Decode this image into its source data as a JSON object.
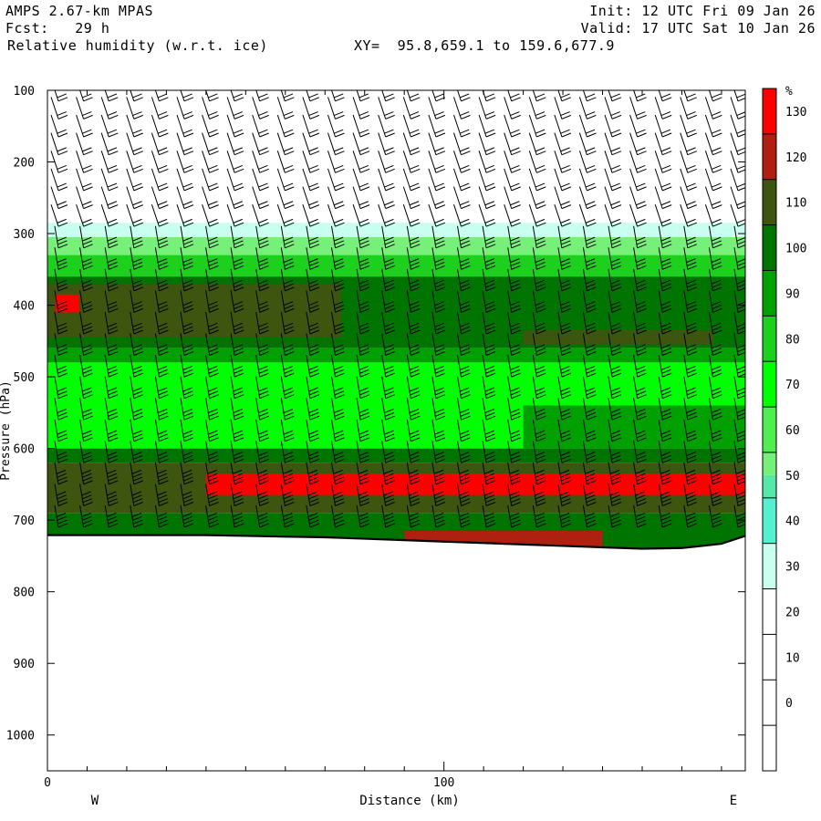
{
  "header": {
    "model": "AMPS 2.67-km MPAS",
    "fcst": "Fcst:   29 h",
    "field": "Relative humidity (w.r.t. ice)",
    "xy": "XY=  95.8,659.1 to 159.6,677.9",
    "init": "Init: 12 UTC Fri 09 Jan 26",
    "valid": "Valid: 17 UTC Sat 10 Jan 26"
  },
  "chart_data": {
    "type": "heatmap",
    "title": "Relative humidity (w.r.t. ice)",
    "xlabel": "Distance (km)",
    "ylabel": "Pressure (hPa)",
    "xlim": [
      0,
      176
    ],
    "ylim": [
      1050,
      100
    ],
    "x_ticks": [
      0,
      100
    ],
    "y_ticks": [
      100,
      200,
      300,
      400,
      500,
      600,
      700,
      800,
      900,
      1000
    ],
    "x_end_labels": {
      "left": "W",
      "right": "E"
    },
    "colorbar": {
      "unit": "%",
      "ticks": [
        0,
        10,
        20,
        30,
        40,
        50,
        60,
        70,
        80,
        90,
        100,
        110,
        120,
        130
      ],
      "bands": [
        {
          "from": -10,
          "to": 30,
          "color": "#ffffff"
        },
        {
          "from": 30,
          "to": 40,
          "color": "#c8ffee"
        },
        {
          "from": 40,
          "to": 50,
          "color": "#55f0d0"
        },
        {
          "from": 50,
          "to": 55,
          "color": "#55e8a8"
        },
        {
          "from": 55,
          "to": 60,
          "color": "#77f07a"
        },
        {
          "from": 60,
          "to": 70,
          "color": "#50ee50"
        },
        {
          "from": 70,
          "to": 80,
          "color": "#00ff00"
        },
        {
          "from": 80,
          "to": 90,
          "color": "#1ed01e"
        },
        {
          "from": 90,
          "to": 100,
          "color": "#00a000"
        },
        {
          "from": 100,
          "to": 110,
          "color": "#007400"
        },
        {
          "from": 110,
          "to": 120,
          "color": "#3e5510"
        },
        {
          "from": 120,
          "to": 130,
          "color": "#b02010"
        },
        {
          "from": 130,
          "to": 140,
          "color": "#ff0000"
        }
      ]
    },
    "terrain_surface": {
      "x": [
        0,
        10,
        20,
        30,
        40,
        50,
        60,
        70,
        80,
        90,
        100,
        110,
        120,
        130,
        140,
        150,
        160,
        170,
        176
      ],
      "p": [
        721,
        721,
        721,
        721,
        721,
        722,
        723,
        724,
        726,
        728,
        730,
        732,
        734,
        736,
        738,
        740,
        739,
        733,
        722
      ]
    },
    "layers": [
      {
        "p_top": 285,
        "p_bot": 305,
        "value": 35
      },
      {
        "p_top": 305,
        "p_bot": 330,
        "value": 58
      },
      {
        "p_top": 330,
        "p_bot": 360,
        "value": 85
      },
      {
        "p_top": 360,
        "p_bot": 460,
        "value": 105
      },
      {
        "p_top": 370,
        "p_bot": 445,
        "x_from": 0,
        "x_to": 74,
        "value": 115
      },
      {
        "p_top": 385,
        "p_bot": 410,
        "x_from": 2,
        "x_to": 8,
        "value": 135
      },
      {
        "p_top": 435,
        "p_bot": 455,
        "x_from": 120,
        "x_to": 168,
        "value": 115
      },
      {
        "p_top": 460,
        "p_bot": 480,
        "value": 90
      },
      {
        "p_top": 480,
        "p_bot": 600,
        "value": 78
      },
      {
        "p_top": 540,
        "p_bot": 600,
        "x_from": 120,
        "x_to": 176,
        "value": 95
      },
      {
        "p_top": 600,
        "p_bot": 620,
        "value": 105
      },
      {
        "p_top": 620,
        "p_bot": 690,
        "value": 115
      },
      {
        "p_top": 635,
        "p_bot": 665,
        "x_from": 40,
        "x_to": 176,
        "value": 135
      },
      {
        "p_top": 690,
        "p_bot": 740,
        "value": 105
      },
      {
        "p_top": 715,
        "p_bot": 740,
        "x_from": 90,
        "x_to": 140,
        "value": 125
      }
    ],
    "wind_barbs": {
      "columns_count": 28,
      "levels_hpa": [
        115,
        140,
        165,
        190,
        215,
        240,
        265,
        290,
        320,
        350,
        380,
        410,
        440,
        470,
        500,
        530,
        560,
        590,
        620,
        650,
        680,
        710
      ]
    }
  }
}
